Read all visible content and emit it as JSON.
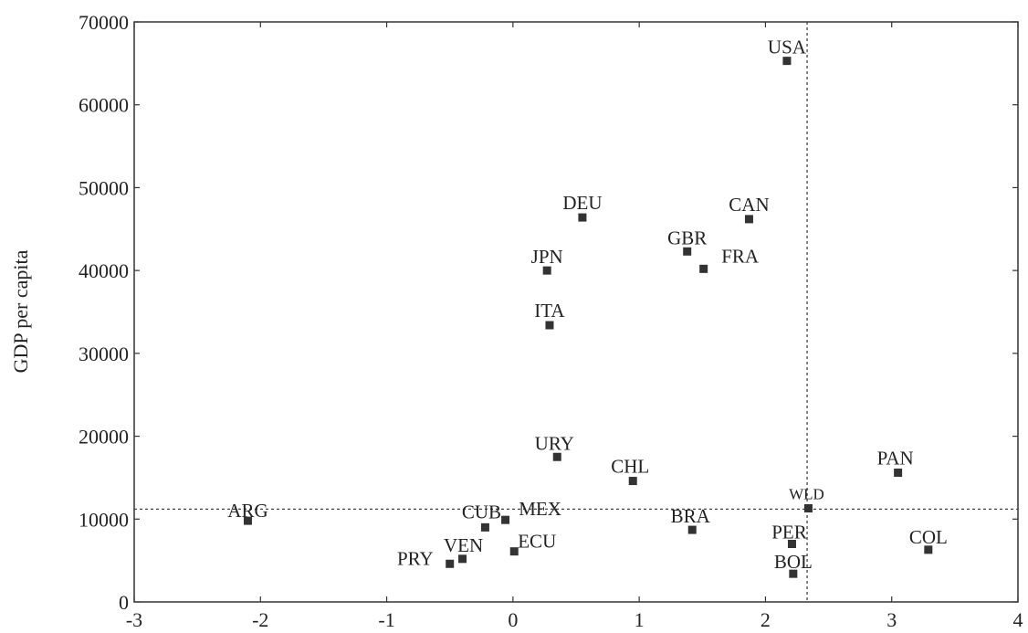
{
  "chart_data": {
    "type": "scatter",
    "title": "",
    "xlabel": "",
    "ylabel": "GDP per capita",
    "xlim": [
      -3,
      4
    ],
    "ylim": [
      0,
      70000
    ],
    "x_ticks": [
      "-3",
      "-2",
      "-1",
      "0",
      "1",
      "2",
      "3",
      "4"
    ],
    "y_ticks": [
      "0",
      "10000",
      "20000",
      "30000",
      "40000",
      "50000",
      "60000",
      "70000"
    ],
    "reference_lines": {
      "x": 2.33,
      "y": 11200
    },
    "grid": false,
    "points": [
      {
        "label": "USA",
        "x": 2.17,
        "y": 65300
      },
      {
        "label": "DEU",
        "x": 0.55,
        "y": 46400
      },
      {
        "label": "CAN",
        "x": 1.87,
        "y": 46200
      },
      {
        "label": "GBR",
        "x": 1.38,
        "y": 42300
      },
      {
        "label": "FRA",
        "x": 1.51,
        "y": 40200
      },
      {
        "label": "JPN",
        "x": 0.27,
        "y": 40000
      },
      {
        "label": "ITA",
        "x": 0.29,
        "y": 33400
      },
      {
        "label": "URY",
        "x": 0.35,
        "y": 17500
      },
      {
        "label": "PAN",
        "x": 3.05,
        "y": 15600
      },
      {
        "label": "CHL",
        "x": 0.95,
        "y": 14600
      },
      {
        "label": "WLD",
        "x": 2.34,
        "y": 11300
      },
      {
        "label": "ARG",
        "x": -2.1,
        "y": 9800
      },
      {
        "label": "MEX",
        "x": -0.06,
        "y": 9900
      },
      {
        "label": "CUB",
        "x": -0.22,
        "y": 9000
      },
      {
        "label": "BRA",
        "x": 1.42,
        "y": 8700
      },
      {
        "label": "PER",
        "x": 2.21,
        "y": 7000
      },
      {
        "label": "COL",
        "x": 3.29,
        "y": 6300
      },
      {
        "label": "ECU",
        "x": 0.01,
        "y": 6100
      },
      {
        "label": "VEN",
        "x": -0.4,
        "y": 5200
      },
      {
        "label": "PRY",
        "x": -0.5,
        "y": 4600
      },
      {
        "label": "BOL",
        "x": 2.22,
        "y": 3400
      }
    ]
  }
}
